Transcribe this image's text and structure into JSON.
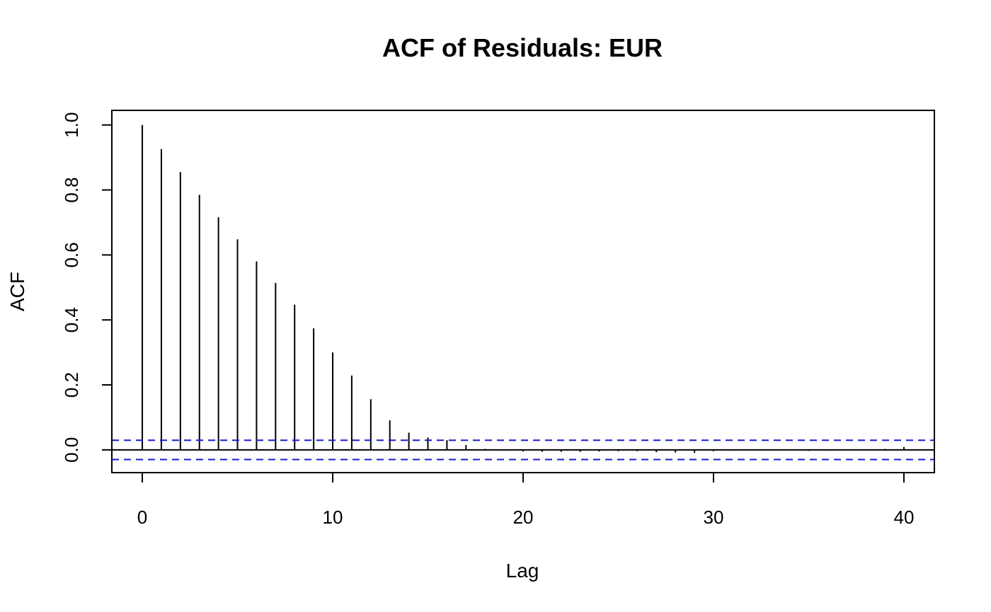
{
  "chart_data": {
    "type": "bar",
    "subtype": "acf",
    "title": "ACF of Residuals: EUR",
    "xlabel": "Lag",
    "ylabel": "ACF",
    "xlim": [
      -1.6,
      41.6
    ],
    "ylim": [
      -0.07,
      1.045
    ],
    "x_ticks": [
      0,
      10,
      20,
      30,
      40
    ],
    "x_tick_labels": [
      "0",
      "10",
      "20",
      "30",
      "40"
    ],
    "y_ticks": [
      0.0,
      0.2,
      0.4,
      0.6,
      0.8,
      1.0
    ],
    "y_tick_labels": [
      "0.0",
      "0.2",
      "0.4",
      "0.6",
      "0.8",
      "1.0"
    ],
    "grid": false,
    "legend": "none",
    "lags": [
      0,
      1,
      2,
      3,
      4,
      5,
      6,
      7,
      8,
      9,
      10,
      11,
      12,
      13,
      14,
      15,
      16,
      17,
      18,
      19,
      20,
      21,
      22,
      23,
      24,
      25,
      26,
      27,
      28,
      29,
      30,
      31,
      32,
      33,
      34,
      35,
      36,
      37,
      38,
      39,
      40
    ],
    "values": [
      1.0,
      0.926,
      0.855,
      0.785,
      0.716,
      0.648,
      0.58,
      0.514,
      0.447,
      0.374,
      0.3,
      0.229,
      0.156,
      0.091,
      0.053,
      0.038,
      0.03,
      0.015,
      0.003,
      -0.002,
      -0.005,
      -0.006,
      -0.006,
      -0.006,
      -0.005,
      -0.004,
      -0.004,
      -0.007,
      -0.008,
      -0.009,
      -0.004,
      -0.002,
      0.001,
      0.001,
      -0.001,
      -0.003,
      -0.002,
      -0.001,
      0.0,
      0.003,
      0.009
    ],
    "confidence_bound": 0.0297,
    "colors": {
      "bars": "#000000",
      "zero_line": "#000000",
      "confidence_lines": "#1a1ad0",
      "frame": "#000000"
    }
  }
}
